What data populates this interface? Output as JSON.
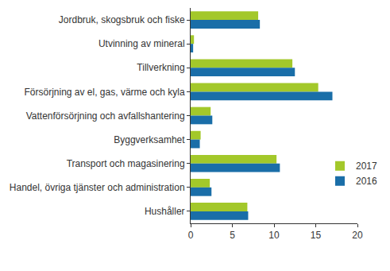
{
  "chart_data": {
    "type": "bar",
    "orientation": "horizontal",
    "categories": [
      "Jordbruk, skogsbruk och fiske",
      "Utvinning av mineral",
      "Tillverkning",
      "Försörjning av el, gas, värme och kyla",
      "Vattenförsörjning och avfallshantering",
      "Byggverksamhet",
      "Transport och magasinering",
      "Handel, övriga tjänster och administration",
      "Hushåller"
    ],
    "series": [
      {
        "name": "2017",
        "color": "#a3c82a",
        "values": [
          8.1,
          0.4,
          12.2,
          15.3,
          2.4,
          1.2,
          10.3,
          2.3,
          6.8
        ]
      },
      {
        "name": "2016",
        "color": "#1a6ea8",
        "values": [
          8.3,
          0.3,
          12.5,
          17.0,
          2.6,
          1.1,
          10.7,
          2.5,
          6.9
        ]
      }
    ],
    "xlim": [
      0,
      20
    ],
    "xticks": [
      0,
      5,
      10,
      15,
      20
    ],
    "grid": false,
    "legend": "right"
  }
}
